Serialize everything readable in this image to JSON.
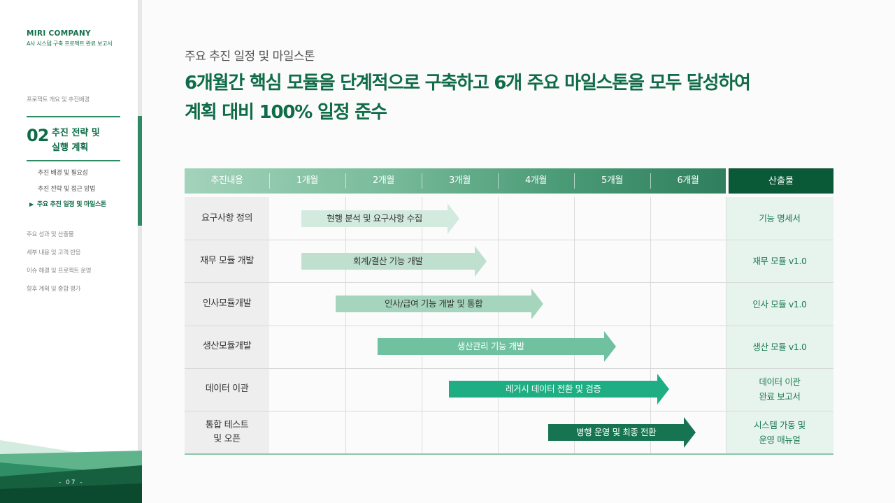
{
  "sidebar": {
    "brand": "MIRI COMPANY",
    "brand_sub": "A사 시스템 구축 프로젝트 완료 보고서",
    "nav_before": "프로젝트 개요 및 추진배경",
    "section_num": "02",
    "section_title_1": "추진 전략 및",
    "section_title_2": "실행 계획",
    "sub_items": [
      "추진 배경 및 필요성",
      "추진 전략 및 접근 방법",
      "주요 추진 일정 및 마일스톤"
    ],
    "active_marker": "▶",
    "nav_after": [
      "주요 성과 및 산출물",
      "세부 내용 및 고객 반응",
      "이슈 해결 및 프로젝트 운영",
      "향후 계획 및 종합 평가"
    ],
    "page_number": "- 07 -"
  },
  "main": {
    "kicker": "주요 추진 일정 및 마일스톤",
    "headline_1": "6개월간 핵심 모듈을 단계적으로 구축하고 6개 주요 마일스톤을 모두 달성하여",
    "headline_2": "계획 대비 100% 일정 준수"
  },
  "table": {
    "header_task": "추진내용",
    "months": [
      "1개월",
      "2개월",
      "3개월",
      "4개월",
      "5개월",
      "6개월"
    ],
    "header_output": "산출물",
    "rows": [
      {
        "task": "요구사항 정의",
        "task2": "",
        "bar": "현행 분석 및 요구사항 수집",
        "output": "기능 명세서",
        "output2": "",
        "start_month": 0.42,
        "end_month": 2.5,
        "color": "#d3eadf",
        "text_color": "#333333"
      },
      {
        "task": "재무 모듈 개발",
        "task2": "",
        "bar": "회계/결산 기능 개발",
        "output": "재무 모듈 v1.0",
        "output2": "",
        "start_month": 0.42,
        "end_month": 2.85,
        "color": "#bfe0cf",
        "text_color": "#333333"
      },
      {
        "task": "인사모듈개발",
        "task2": "",
        "bar": "인사/급여 기능 개발 및 통합",
        "output": "인사 모듈 v1.0",
        "output2": "",
        "start_month": 0.87,
        "end_month": 3.6,
        "color": "#a6d5bd",
        "text_color": "#333333"
      },
      {
        "task": "생산모듈개발",
        "task2": "",
        "bar": "생산관리 기능 개발",
        "output": "생산 모듈 v1.0",
        "output2": "",
        "start_month": 1.42,
        "end_month": 4.55,
        "color": "#6fc1a0",
        "text_color": "#ffffff"
      },
      {
        "task": "데이터 이관",
        "task2": "",
        "bar": "레거시 데이터 전환 및 검증",
        "output": "데이터 이관",
        "output2": "완료 보고서",
        "start_month": 2.36,
        "end_month": 5.25,
        "color": "#1fae84",
        "text_color": "#ffffff"
      },
      {
        "task": "통합 테스트",
        "task2": "및 오픈",
        "bar": "병행 운영 및 최종 전환",
        "output": "시스템 가동 및",
        "output2": "운영 매뉴얼",
        "start_month": 3.66,
        "end_month": 5.6,
        "color": "#177452",
        "text_color": "#ffffff"
      }
    ]
  }
}
